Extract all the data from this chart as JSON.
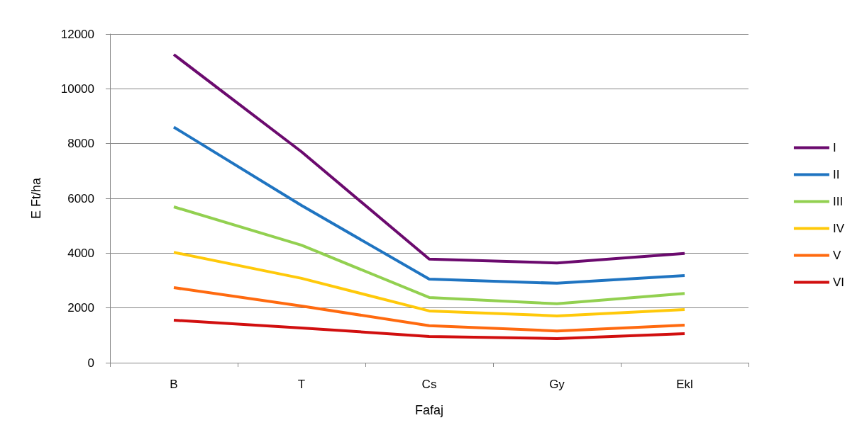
{
  "chart_data": {
    "type": "line",
    "xlabel": "Fafaj",
    "ylabel": "E Ft/ha",
    "categories": [
      "B",
      "T",
      "Cs",
      "Gy",
      "Ekl"
    ],
    "series": [
      {
        "name": "I",
        "color": "#6b0a6e",
        "values": [
          11250,
          7700,
          3780,
          3640,
          3990
        ]
      },
      {
        "name": "II",
        "color": "#1f74c1",
        "values": [
          8600,
          5740,
          3050,
          2900,
          3180
        ]
      },
      {
        "name": "III",
        "color": "#92d050",
        "values": [
          5690,
          4290,
          2380,
          2150,
          2530
        ]
      },
      {
        "name": "IV",
        "color": "#ffc90a",
        "values": [
          4030,
          3080,
          1890,
          1710,
          1940
        ]
      },
      {
        "name": "V",
        "color": "#ff6a0f",
        "values": [
          2740,
          2070,
          1350,
          1160,
          1370
        ]
      },
      {
        "name": "VI",
        "color": "#d10f0f",
        "values": [
          1550,
          1270,
          960,
          880,
          1060
        ]
      }
    ],
    "ylim": [
      0,
      12000
    ],
    "yticks": [
      0,
      2000,
      4000,
      6000,
      8000,
      10000,
      12000
    ],
    "grid": "y",
    "legend": "right",
    "marker": "none",
    "line_style": "solid"
  }
}
